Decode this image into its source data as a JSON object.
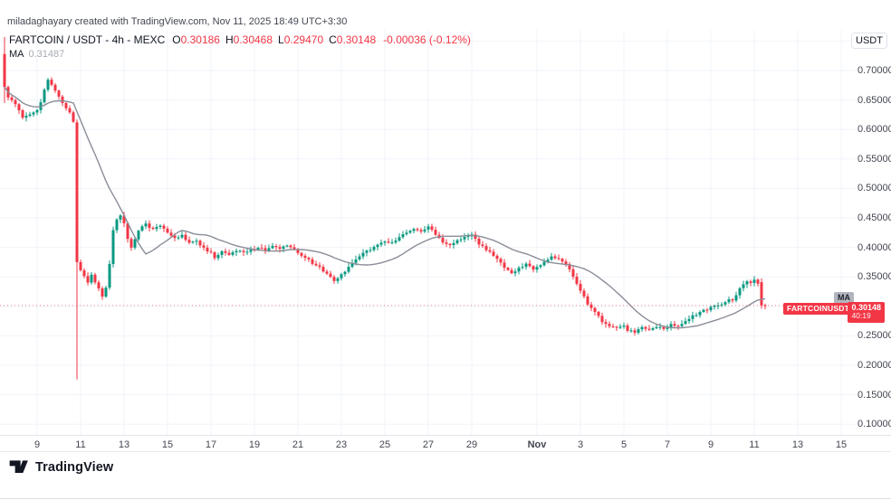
{
  "attribution": "miladaghayary created with TradingView.com, Nov 11, 2025 18:49 UTC+3:30",
  "legend": {
    "symbol": "FARTCOIN / USDT - 4h - MEXC",
    "ohlc": [
      {
        "label": "O",
        "value": "0.30186"
      },
      {
        "label": "H",
        "value": "0.30468"
      },
      {
        "label": "L",
        "value": "0.29470"
      },
      {
        "label": "C",
        "value": "0.30148"
      }
    ],
    "change": "-0.00036 (-0.12%)",
    "ma_label": "MA",
    "ma_value": "0.31487"
  },
  "axis": {
    "currency_button": "USDT"
  },
  "badges": {
    "ma": "MA",
    "symbol": "FARTCOINUSDT",
    "price": "0.30148",
    "countdown": "40:19"
  },
  "footer": {
    "logo_text": "TradingView"
  },
  "colors": {
    "up": "#089981",
    "down": "#f23645",
    "ma_line": "#8a8d98",
    "grid": "#f0f3fa",
    "price_line": "#f23645"
  },
  "chart_data": {
    "type": "candlestick",
    "title": "FARTCOIN / USDT - 4h - MEXC",
    "symbol": "FARTCOIN/USDT",
    "interval": "4h",
    "exchange": "MEXC",
    "current_ohlc": {
      "open": 0.30186,
      "high": 0.30468,
      "low": 0.2947,
      "close": 0.30148,
      "change": -0.00036,
      "change_pct": -0.12
    },
    "ma": {
      "type": "MA",
      "period": 20,
      "value": 0.31487
    },
    "price_line": 0.30148,
    "ylim": [
      0.08,
      0.77
    ],
    "y_axis_labels": [
      "0.70000",
      "0.65000",
      "0.60000",
      "0.55000",
      "0.50000",
      "0.45000",
      "0.40000",
      "0.35000",
      "0.25000",
      "0.20000",
      "0.15000",
      "0.10000"
    ],
    "y_grid_levels": [
      0.75,
      0.7,
      0.65,
      0.6,
      0.55,
      0.5,
      0.45,
      0.4,
      0.35,
      0.3,
      0.25,
      0.2,
      0.15,
      0.1
    ],
    "x_ticks": [
      {
        "label": "9",
        "day": 0
      },
      {
        "label": "11",
        "day": 2
      },
      {
        "label": "13",
        "day": 4
      },
      {
        "label": "15",
        "day": 6
      },
      {
        "label": "17",
        "day": 8
      },
      {
        "label": "19",
        "day": 10
      },
      {
        "label": "21",
        "day": 12
      },
      {
        "label": "23",
        "day": 14
      },
      {
        "label": "25",
        "day": 16
      },
      {
        "label": "27",
        "day": 18
      },
      {
        "label": "29",
        "day": 20
      },
      {
        "label": "Nov",
        "day": 23,
        "bold": true
      },
      {
        "label": "3",
        "day": 25
      },
      {
        "label": "5",
        "day": 27
      },
      {
        "label": "7",
        "day": 29
      },
      {
        "label": "9",
        "day": 31
      },
      {
        "label": "11",
        "day": 33
      },
      {
        "label": "13",
        "day": 35
      },
      {
        "label": "15",
        "day": 37
      }
    ],
    "candle_count": 211,
    "close_anchors": [
      [
        0,
        0.672
      ],
      [
        1,
        0.655
      ],
      [
        3,
        0.642
      ],
      [
        5,
        0.62
      ],
      [
        7,
        0.626
      ],
      [
        9,
        0.634
      ],
      [
        10,
        0.648
      ],
      [
        12,
        0.685
      ],
      [
        13,
        0.676
      ],
      [
        15,
        0.654
      ],
      [
        17,
        0.636
      ],
      [
        18,
        0.628
      ],
      [
        19,
        0.612
      ],
      [
        20,
        0.375
      ],
      [
        21,
        0.362
      ],
      [
        23,
        0.342
      ],
      [
        24,
        0.352
      ],
      [
        26,
        0.33
      ],
      [
        27,
        0.318
      ],
      [
        28,
        0.332
      ],
      [
        29,
        0.372
      ],
      [
        30,
        0.428
      ],
      [
        31,
        0.448
      ],
      [
        32,
        0.455
      ],
      [
        33,
        0.44
      ],
      [
        34,
        0.415
      ],
      [
        35,
        0.401
      ],
      [
        37,
        0.43
      ],
      [
        39,
        0.44
      ],
      [
        41,
        0.43
      ],
      [
        43,
        0.437
      ],
      [
        45,
        0.425
      ],
      [
        47,
        0.415
      ],
      [
        49,
        0.42
      ],
      [
        51,
        0.408
      ],
      [
        53,
        0.412
      ],
      [
        55,
        0.398
      ],
      [
        57,
        0.39
      ],
      [
        58,
        0.382
      ],
      [
        60,
        0.392
      ],
      [
        62,
        0.387
      ],
      [
        64,
        0.395
      ],
      [
        66,
        0.39
      ],
      [
        68,
        0.396
      ],
      [
        70,
        0.4
      ],
      [
        72,
        0.396
      ],
      [
        74,
        0.401
      ],
      [
        76,
        0.398
      ],
      [
        78,
        0.403
      ],
      [
        80,
        0.395
      ],
      [
        82,
        0.387
      ],
      [
        84,
        0.378
      ],
      [
        86,
        0.37
      ],
      [
        88,
        0.36
      ],
      [
        90,
        0.35
      ],
      [
        91,
        0.344
      ],
      [
        93,
        0.353
      ],
      [
        95,
        0.368
      ],
      [
        97,
        0.381
      ],
      [
        99,
        0.39
      ],
      [
        101,
        0.397
      ],
      [
        103,
        0.404
      ],
      [
        105,
        0.41
      ],
      [
        107,
        0.407
      ],
      [
        109,
        0.417
      ],
      [
        111,
        0.426
      ],
      [
        113,
        0.431
      ],
      [
        115,
        0.427
      ],
      [
        117,
        0.435
      ],
      [
        119,
        0.423
      ],
      [
        121,
        0.41
      ],
      [
        123,
        0.404
      ],
      [
        125,
        0.412
      ],
      [
        127,
        0.418
      ],
      [
        129,
        0.422
      ],
      [
        131,
        0.406
      ],
      [
        133,
        0.396
      ],
      [
        135,
        0.386
      ],
      [
        137,
        0.373
      ],
      [
        139,
        0.362
      ],
      [
        140,
        0.356
      ],
      [
        142,
        0.366
      ],
      [
        144,
        0.371
      ],
      [
        146,
        0.363
      ],
      [
        148,
        0.37
      ],
      [
        150,
        0.377
      ],
      [
        151,
        0.385
      ],
      [
        153,
        0.382
      ],
      [
        155,
        0.372
      ],
      [
        157,
        0.352
      ],
      [
        159,
        0.328
      ],
      [
        160,
        0.315
      ],
      [
        161,
        0.305
      ],
      [
        163,
        0.29
      ],
      [
        165,
        0.275
      ],
      [
        167,
        0.266
      ],
      [
        169,
        0.262
      ],
      [
        171,
        0.266
      ],
      [
        172,
        0.26
      ],
      [
        174,
        0.257
      ],
      [
        176,
        0.264
      ],
      [
        178,
        0.259
      ],
      [
        180,
        0.266
      ],
      [
        182,
        0.262
      ],
      [
        184,
        0.268
      ],
      [
        186,
        0.266
      ],
      [
        188,
        0.274
      ],
      [
        190,
        0.283
      ],
      [
        192,
        0.29
      ],
      [
        194,
        0.295
      ],
      [
        196,
        0.3
      ],
      [
        198,
        0.305
      ],
      [
        200,
        0.312
      ],
      [
        201,
        0.308
      ],
      [
        203,
        0.33
      ],
      [
        205,
        0.344
      ],
      [
        206,
        0.34
      ],
      [
        207,
        0.345
      ],
      [
        208,
        0.338
      ],
      [
        209,
        0.30148
      ],
      [
        210,
        0.30148
      ]
    ],
    "special_candles": {
      "0": {
        "o": 0.728,
        "h": 0.757,
        "l": 0.645,
        "c": 0.672
      },
      "20": {
        "o": 0.612,
        "h": 0.617,
        "l": 0.176,
        "c": 0.375
      },
      "209": {
        "o": 0.341,
        "h": 0.3475,
        "l": 0.296,
        "c": 0.30148
      },
      "210": {
        "o": 0.30186,
        "h": 0.30468,
        "l": 0.2947,
        "c": 0.30148
      }
    }
  }
}
